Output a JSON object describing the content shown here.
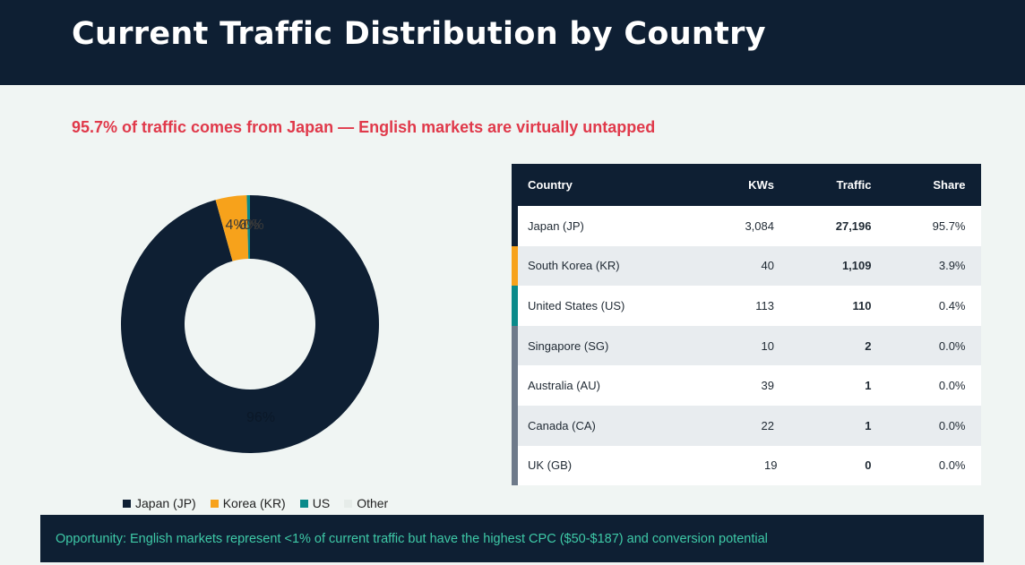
{
  "header": {
    "title": "Current Traffic Distribution by Country"
  },
  "subtitle": {
    "text": "95.7% of traffic comes from Japan — English markets are virtually untapped",
    "color": "#e0394a"
  },
  "chart_data": {
    "type": "pie",
    "variant": "donut",
    "categories": [
      "Japan (JP)",
      "Korea (KR)",
      "US",
      "Other"
    ],
    "values": [
      95.7,
      3.9,
      0.4,
      0.0
    ],
    "data_labels": [
      "96%",
      "4%",
      "0%",
      "0%"
    ],
    "colors": [
      "#0e1f33",
      "#f7a21b",
      "#0a8a8a",
      "#e6ece9"
    ],
    "legend_position": "bottom"
  },
  "table": {
    "columns": [
      "Country",
      "KWs",
      "Traffic",
      "Share"
    ],
    "rows": [
      {
        "country": "Japan (JP)",
        "kws": "3,084",
        "traffic": "27,196",
        "share": "95.7%",
        "accent": "#0e1f33"
      },
      {
        "country": "South Korea (KR)",
        "kws": "40",
        "traffic": "1,109",
        "share": "3.9%",
        "accent": "#f7a21b"
      },
      {
        "country": "United States (US)",
        "kws": "113",
        "traffic": "110",
        "share": "0.4%",
        "accent": "#0a8a8a"
      },
      {
        "country": "Singapore (SG)",
        "kws": "10",
        "traffic": "2",
        "share": "0.0%",
        "accent": "#6e7a8a"
      },
      {
        "country": "Australia (AU)",
        "kws": "39",
        "traffic": "1",
        "share": "0.0%",
        "accent": "#6e7a8a"
      },
      {
        "country": "Canada (CA)",
        "kws": "22",
        "traffic": "1",
        "share": "0.0%",
        "accent": "#6e7a8a"
      },
      {
        "country": "UK (GB)",
        "kws": "19",
        "traffic": "0",
        "share": "0.0%",
        "accent": "#6e7a8a"
      }
    ]
  },
  "footer": {
    "text": "Opportunity: English markets represent <1% of current traffic but have the highest CPC ($50-$187) and conversion potential",
    "color": "#3ec9a7"
  }
}
